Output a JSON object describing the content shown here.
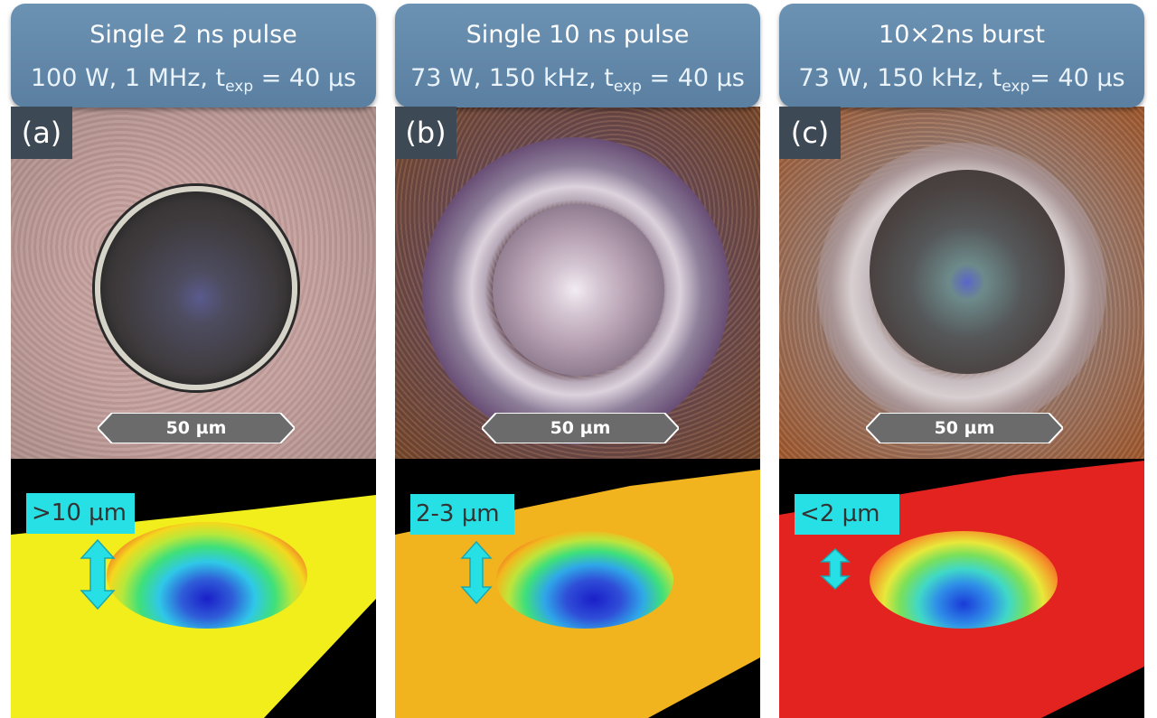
{
  "panels": [
    {
      "title": "Single 2 ns pulse",
      "params_before_sub": "100 W, 1 MHz, t",
      "params_sub": "exp",
      "params_after_sub": " = 40 µs",
      "label": "(a)",
      "scale_bar": "50 µm",
      "depth_tag": ">10 µm"
    },
    {
      "title": "Single 10 ns pulse",
      "params_before_sub": "73 W, 150 kHz, t",
      "params_sub": "exp",
      "params_after_sub": " = 40 µs",
      "label": "(b)",
      "scale_bar": "50 µm",
      "depth_tag": "2-3 µm"
    },
    {
      "title": "10×2ns burst",
      "params_before_sub": "73 W, 150 kHz, t",
      "params_sub": "exp",
      "params_after_sub": "= 40 µs",
      "label": "(c)",
      "scale_bar": "50 µm",
      "depth_tag": "<2 µm"
    }
  ],
  "colors": {
    "header_bg": "#6189ab",
    "label_bg": "#3d4a55",
    "scale_bar_bg": "#6b6b6b",
    "depth_tag_bg": "#27e0e6",
    "surface_a": "#f2ee1c",
    "surface_b": "#f2b41e",
    "surface_c": "#e3231f"
  }
}
